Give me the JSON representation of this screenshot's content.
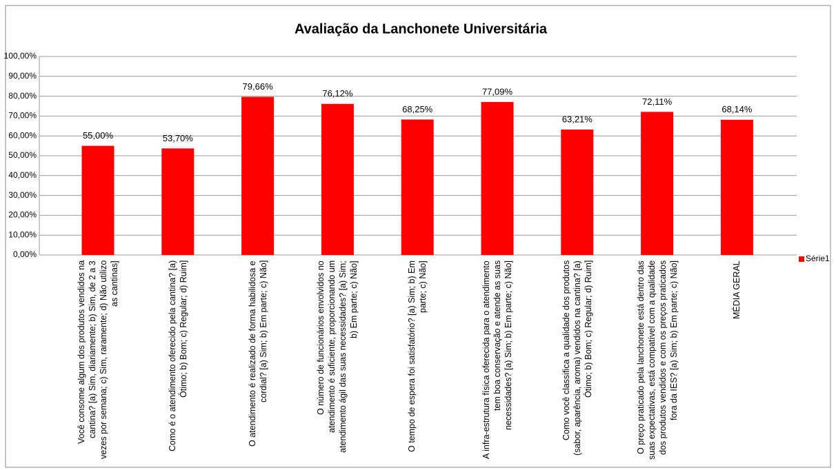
{
  "chart_data": {
    "type": "bar",
    "title": "Avaliação da Lanchonete Universitária",
    "categories": [
      "Você consome algum dos produtos vendidos na cantina? [a) Sim, diariamente; b) Sim, de 2 a 3 vezes por semana; c) Sim, raramente; d) Não utilizo as cantinas]",
      "Como é o atendimento oferecido pela cantina? [a) Ótimo; b) Bom; c) Regular; d) Ruim]",
      "O atendimento é realizado de forma habilidosa e cordial? [a) Sim; b) Em parte; c) Não]",
      "O número de funcionários envolvidos no atendimento é suficiente, proporcionando um atendimento ágil das suas necessidades? [a) Sim; b) Em parte; c) Não]",
      "O tempo de espera foi satisfatório? [a) Sim; b) Em parte; c) Não]",
      "A infra-estrutura física oferecida para o atendimento tem boa conservação e atende as suas necessidades? [a) Sim; b) Em parte; c) Não]",
      "Como você classifica a qualidade dos produtos (sabor, aparência, aroma) vendidos na cantina? [a) Ótimo; b) Bom; c) Regular; d) Ruim]",
      "O preço praticado pela lanchonete está dentro das suas expectativas, está compatível com a qualidade dos produtos vendidos e com os preços praticados fora da IES? [a) Sim; b) Em parte; c) Não]",
      "MÉDIA GERAL"
    ],
    "series": [
      {
        "name": "Série1",
        "color": "#ff0000",
        "values": [
          55.0,
          53.7,
          79.66,
          76.12,
          68.25,
          77.09,
          63.21,
          72.11,
          68.14
        ],
        "value_labels": [
          "55,00%",
          "53,70%",
          "79,66%",
          "76,12%",
          "68,25%",
          "77,09%",
          "63,21%",
          "72,11%",
          "68,14%"
        ]
      }
    ],
    "ylim": [
      0,
      100
    ],
    "yticks": [
      {
        "value": 0,
        "label": "0,00%"
      },
      {
        "value": 10,
        "label": "10,00%"
      },
      {
        "value": 20,
        "label": "20,00%"
      },
      {
        "value": 30,
        "label": "30,00%"
      },
      {
        "value": 40,
        "label": "40,00%"
      },
      {
        "value": 50,
        "label": "50,00%"
      },
      {
        "value": 60,
        "label": "60,00%"
      },
      {
        "value": 70,
        "label": "70,00%"
      },
      {
        "value": 80,
        "label": "80,00%"
      },
      {
        "value": 90,
        "label": "90,00%"
      },
      {
        "value": 100,
        "label": "100,00%"
      }
    ],
    "grid": true,
    "legend": "right"
  }
}
